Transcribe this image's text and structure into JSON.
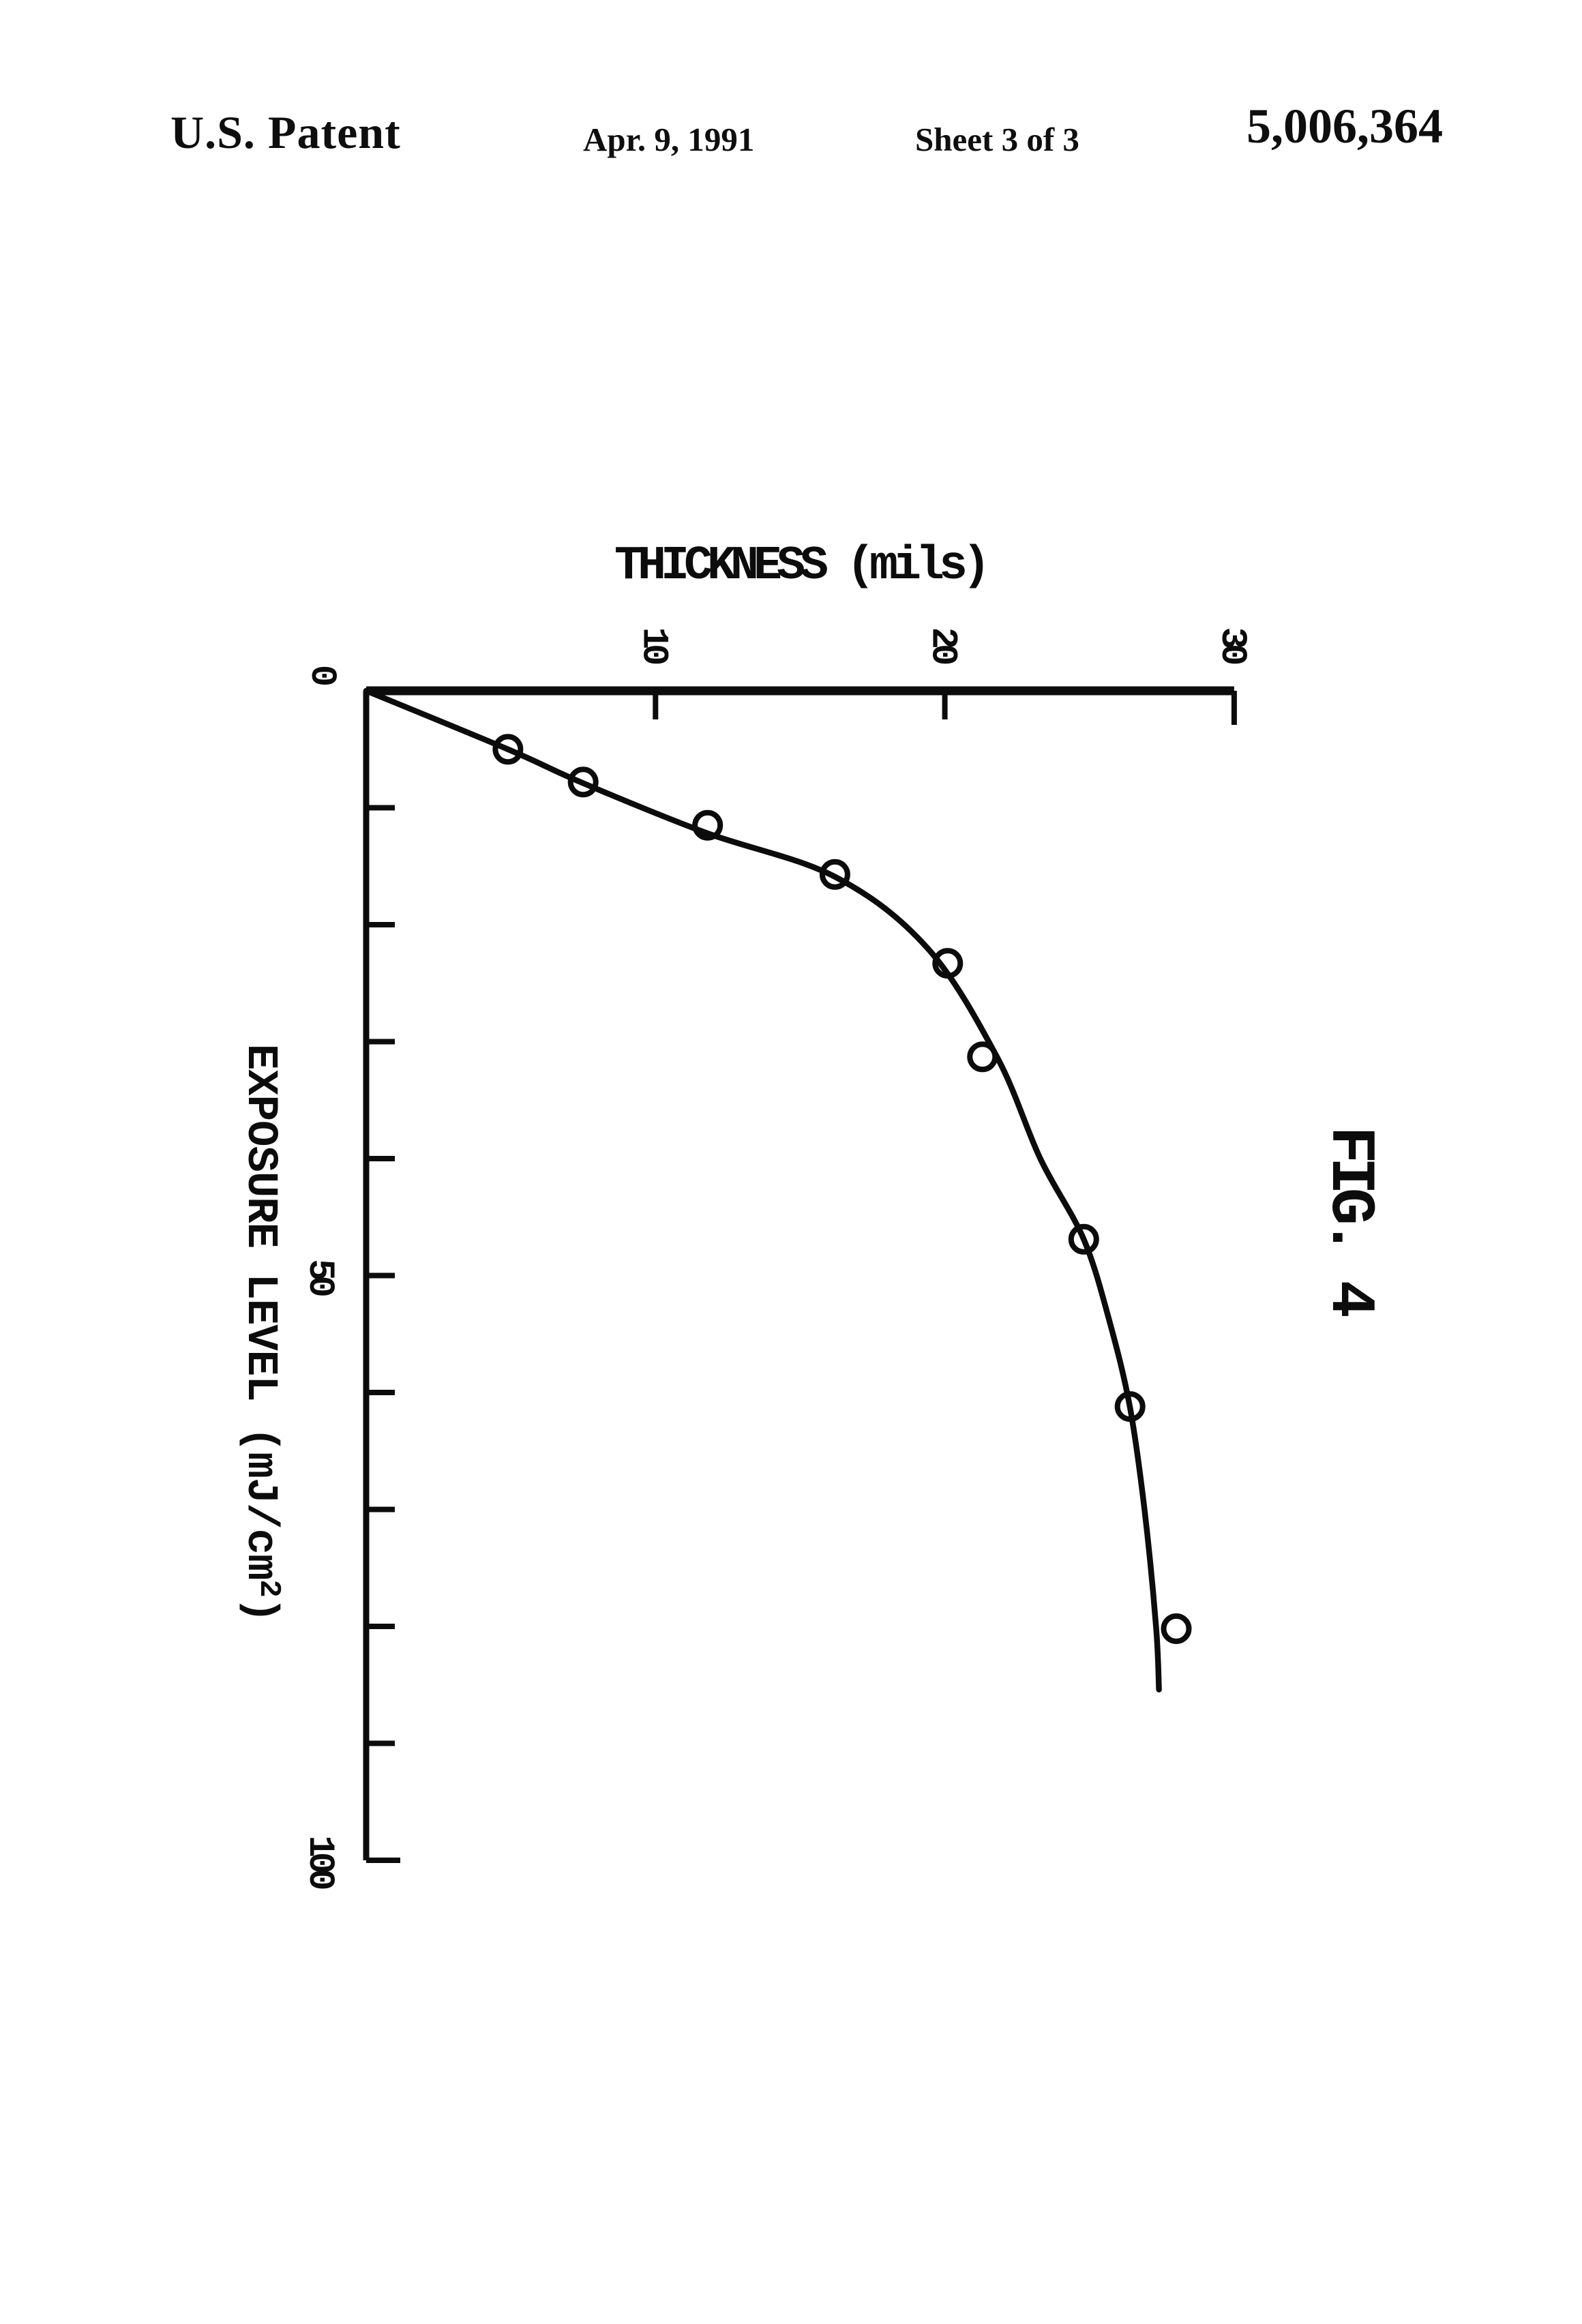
{
  "page": {
    "background": "#ffffff",
    "ink": "#0c0c0c"
  },
  "header": {
    "patent_label": "U.S. Patent",
    "date": "Apr. 9, 1991",
    "sheet": "Sheet 3 of 3",
    "patent_number": "5,006,364"
  },
  "figure": {
    "label": "FIG. 4"
  },
  "chart_data": {
    "type": "scatter",
    "title": "THICKNESS (mils)",
    "orientation": "figure rotated 90° clockwise on page; exposure axis runs down the page, thickness axis runs right",
    "thickness_axis": {
      "label": "THICKNESS (mils)",
      "min": 0,
      "max": 30,
      "tick_values": [
        10,
        20,
        30
      ],
      "tick_labels": [
        {
          "value": 0,
          "label": "0"
        },
        {
          "value": 10,
          "label": "10"
        },
        {
          "value": 20,
          "label": "20"
        },
        {
          "value": 30,
          "label": "30"
        }
      ]
    },
    "exposure_axis": {
      "label": "EXPOSURE LEVEL (mJ/cm²)",
      "label_parts": {
        "pre": "EXPOSURE LEVEL (mJ/cm",
        "sup": "2",
        "post": ")"
      },
      "min": 0,
      "max": 100,
      "tick_step": 10,
      "tick_labels": [
        {
          "value": 50,
          "label": "50"
        },
        {
          "value": 100,
          "label": "100"
        }
      ]
    },
    "data_points": [
      {
        "exposure": 5.0,
        "thickness": 4.9
      },
      {
        "exposure": 7.8,
        "thickness": 7.5
      },
      {
        "exposure": 11.5,
        "thickness": 11.8
      },
      {
        "exposure": 15.7,
        "thickness": 16.2
      },
      {
        "exposure": 23.3,
        "thickness": 20.1
      },
      {
        "exposure": 31.3,
        "thickness": 21.3
      },
      {
        "exposure": 46.9,
        "thickness": 24.8
      },
      {
        "exposure": 61.2,
        "thickness": 26.4
      },
      {
        "exposure": 80.2,
        "thickness": 28.0
      }
    ],
    "fit_curve": [
      [
        0,
        0
      ],
      [
        5,
        4.9
      ],
      [
        7.9,
        7.5
      ],
      [
        12.1,
        11.7
      ],
      [
        15.9,
        16.2
      ],
      [
        22,
        19.4
      ],
      [
        31.3,
        21.8
      ],
      [
        40,
        23.3
      ],
      [
        46.9,
        24.8
      ],
      [
        54,
        25.7
      ],
      [
        61.3,
        26.4
      ],
      [
        70,
        26.9
      ],
      [
        80,
        27.3
      ],
      [
        85.4,
        27.4
      ]
    ]
  }
}
